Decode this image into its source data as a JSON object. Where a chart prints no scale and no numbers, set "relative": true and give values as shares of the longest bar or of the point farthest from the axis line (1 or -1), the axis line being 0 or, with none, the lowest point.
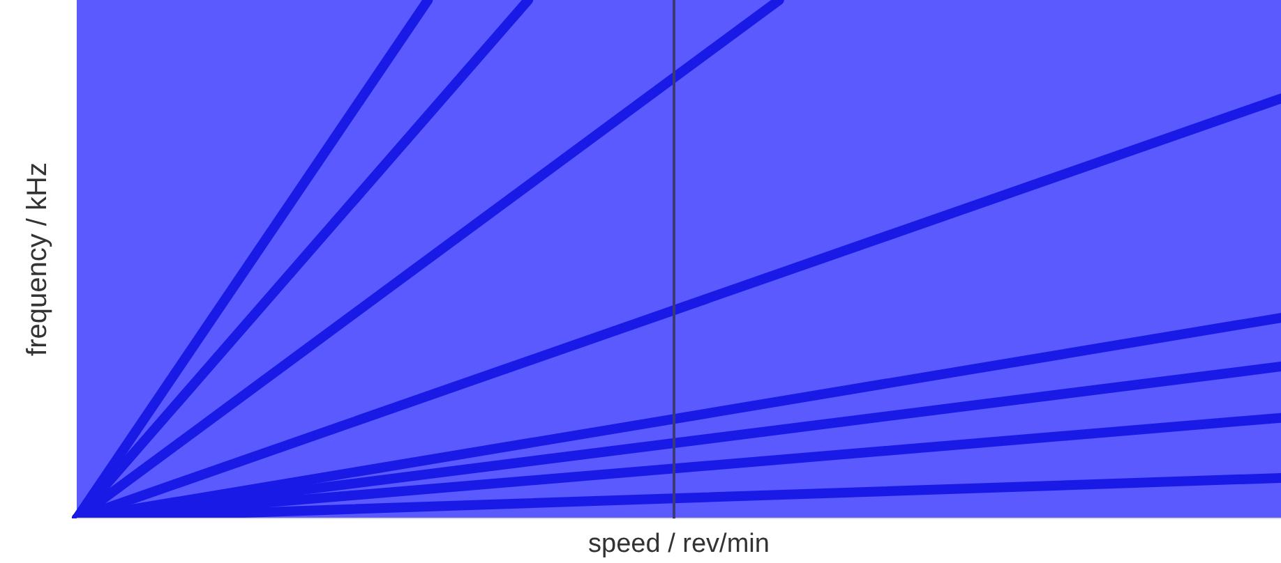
{
  "chart_data": {
    "type": "line",
    "relative": true,
    "xlabel": "speed / rev/min",
    "ylabel": "frequency / kHz",
    "categories": [
      null,
      null,
      null,
      null,
      null,
      null,
      null,
      null,
      null,
      null,
      null,
      null,
      null,
      null,
      null,
      null,
      null,
      null,
      null,
      null,
      null,
      null,
      null,
      null,
      null
    ],
    "series": [
      {
        "color": "#1a1ae6",
        "values": [
          0,
          null,
          null,
          null,
          null,
          null,
          null,
          null,
          null,
          null,
          null,
          null,
          null,
          null,
          null,
          null,
          null,
          null,
          null,
          null,
          null,
          null,
          null,
          null,
          0.078
        ]
      },
      {
        "color": "#1a1ae6",
        "values": [
          0,
          null,
          null,
          null,
          null,
          null,
          null,
          null,
          null,
          null,
          null,
          null,
          null,
          null,
          null,
          null,
          null,
          null,
          null,
          null,
          null,
          null,
          null,
          null,
          0.194
        ]
      },
      {
        "color": "#1a1ae6",
        "values": [
          0,
          null,
          null,
          null,
          null,
          null,
          null,
          null,
          null,
          null,
          null,
          null,
          null,
          null,
          null,
          null,
          null,
          null,
          null,
          null,
          null,
          null,
          null,
          null,
          0.293
        ]
      },
      {
        "color": "#1a1ae6",
        "values": [
          0,
          null,
          null,
          null,
          null,
          null,
          null,
          null,
          null,
          null,
          null,
          null,
          null,
          null,
          null,
          null,
          null,
          null,
          null,
          null,
          null,
          null,
          null,
          null,
          0.387
        ]
      },
      {
        "color": "#1a1ae6",
        "values": [
          0,
          null,
          null,
          null,
          null,
          null,
          null,
          null,
          null,
          null,
          null,
          null,
          null,
          null,
          null,
          null,
          null,
          null,
          null,
          null,
          null,
          null,
          null,
          null,
          0.81
        ]
      },
      {
        "color": "#1a1ae6",
        "values": [
          0,
          null,
          null,
          null,
          null,
          null,
          null,
          null,
          null,
          null,
          null,
          null,
          null,
          null,
          1,
          null,
          null,
          null,
          null,
          null,
          null,
          null,
          null,
          null,
          null
        ]
      },
      {
        "color": "#1a1ae6",
        "values": [
          0,
          null,
          null,
          null,
          null,
          null,
          null,
          null,
          null,
          1,
          null,
          null,
          null,
          null,
          null,
          null,
          null,
          null,
          null,
          null,
          null,
          null,
          null,
          null,
          null
        ]
      },
      {
        "color": "#1a1ae6",
        "values": [
          0,
          null,
          null,
          null,
          null,
          null,
          null,
          1,
          null,
          null,
          null,
          null,
          null,
          null,
          null,
          null,
          null,
          null,
          null,
          null,
          null,
          null,
          null,
          null,
          null
        ]
      }
    ]
  }
}
